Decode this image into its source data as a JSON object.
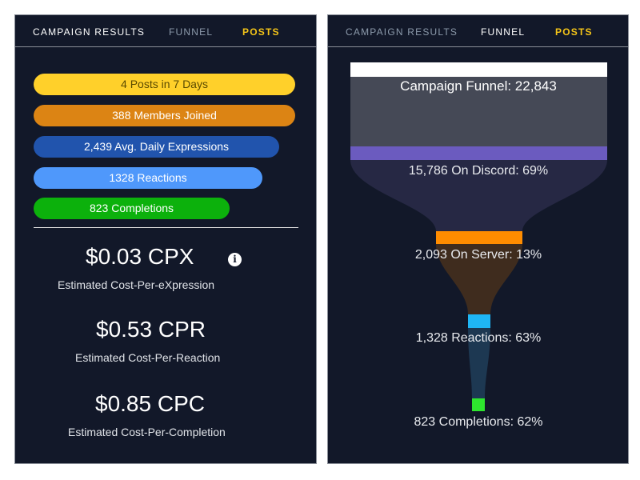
{
  "left_panel": {
    "tabs": [
      {
        "label": "CAMPAIGN RESULTS"
      },
      {
        "label": "FUNNEL"
      },
      {
        "label": "POSTS"
      }
    ],
    "stats": [
      {
        "label": "4 Posts in 7 Days",
        "color": "#ffd02a",
        "text_color": "#5a4a00"
      },
      {
        "label": "388 Members Joined",
        "color": "#dc8414",
        "text_color": "#ffffff"
      },
      {
        "label": "2,439 Avg. Daily Expressions",
        "color": "#2154ad",
        "text_color": "#ffffff"
      },
      {
        "label": "1328 Reactions",
        "color": "#4f98fb",
        "text_color": "#ffffff"
      },
      {
        "label": "823 Completions",
        "color": "#0cb10c",
        "text_color": "#ffffff"
      }
    ],
    "metrics": [
      {
        "value": "$0.03 CPX",
        "label": "Estimated Cost-Per-eXpression"
      },
      {
        "value": "$0.53 CPR",
        "label": "Estimated Cost-Per-Reaction"
      },
      {
        "value": "$0.85 CPC",
        "label": "Estimated Cost-Per-Completion"
      }
    ],
    "info_icon": "info-icon"
  },
  "right_panel": {
    "tabs": [
      {
        "label": "CAMPAIGN RESULTS"
      },
      {
        "label": "FUNNEL"
      },
      {
        "label": "POSTS"
      }
    ],
    "funnel": {
      "title": "Campaign Funnel: 22,843",
      "stages": [
        {
          "label": "15,786 On Discord: 69%",
          "color": "#6b5bbf"
        },
        {
          "label": "2,093 On Server: 13%",
          "color": "#ff8c00"
        },
        {
          "label": "1,328 Reactions: 63%",
          "color": "#1fb6f5"
        },
        {
          "label": "823 Completions: 62%",
          "color": "#2ee52e"
        }
      ]
    }
  }
}
